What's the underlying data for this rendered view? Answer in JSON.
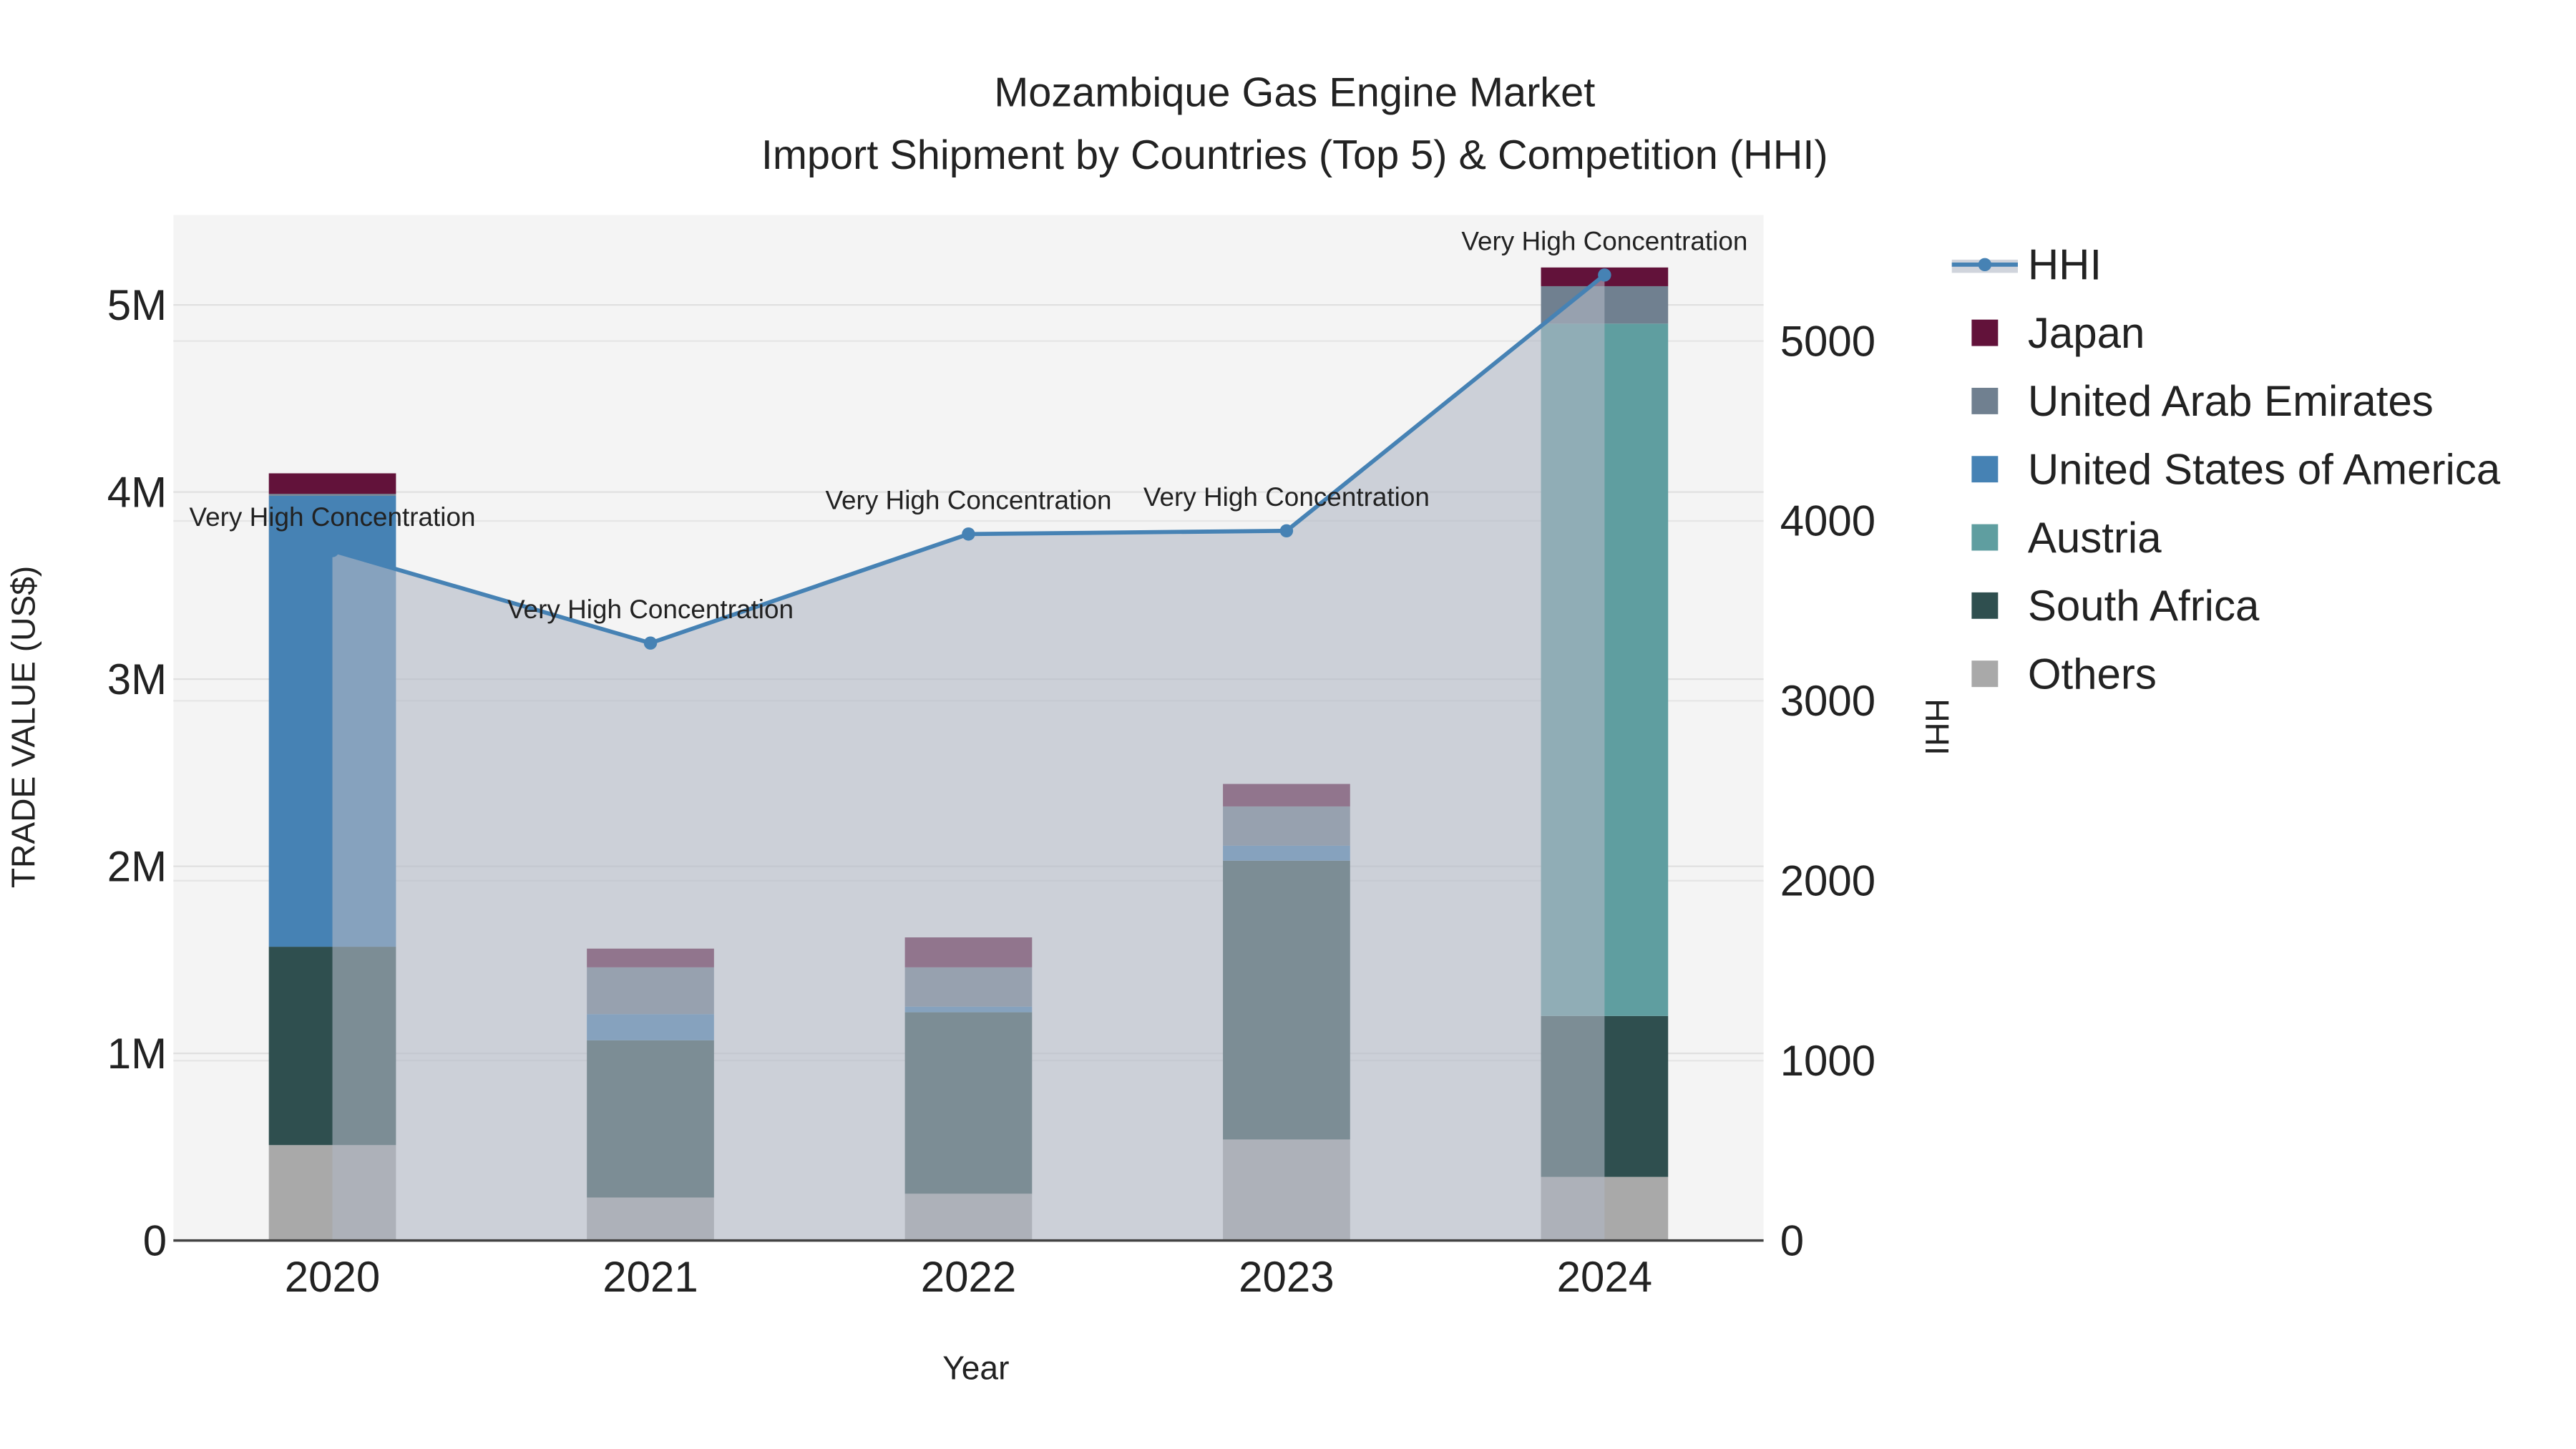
{
  "chart_data": {
    "type": "bar",
    "title": "Mozambique Gas Engine Market",
    "subtitle": "Import Shipment by Countries (Top 5) & Competition (HHI)",
    "xlabel": "Year",
    "ylabel": "TRADE VALUE (US$)",
    "y2label": "HHI",
    "categories": [
      "2020",
      "2021",
      "2022",
      "2023",
      "2024"
    ],
    "ylim": [
      0,
      5480000
    ],
    "y2lim": [
      0,
      5700
    ],
    "yticks": [
      {
        "v": 0,
        "label": "0"
      },
      {
        "v": 1000000,
        "label": "1M"
      },
      {
        "v": 2000000,
        "label": "2M"
      },
      {
        "v": 3000000,
        "label": "3M"
      },
      {
        "v": 4000000,
        "label": "4M"
      },
      {
        "v": 5000000,
        "label": "5M"
      }
    ],
    "y2ticks": [
      {
        "v": 0,
        "label": "0"
      },
      {
        "v": 1000,
        "label": "1000"
      },
      {
        "v": 2000,
        "label": "2000"
      },
      {
        "v": 3000,
        "label": "3000"
      },
      {
        "v": 4000,
        "label": "4000"
      },
      {
        "v": 5000,
        "label": "5000"
      }
    ],
    "series": [
      {
        "name": "Others",
        "color": "#a9a9a9",
        "values": [
          510000,
          230000,
          250000,
          540000,
          340000
        ]
      },
      {
        "name": "South Africa",
        "color": "#2f4f4f",
        "values": [
          1060000,
          840000,
          970000,
          1490000,
          860000
        ]
      },
      {
        "name": "Austria",
        "color": "#5f9ea0",
        "values": [
          0,
          0,
          0,
          0,
          3700000
        ]
      },
      {
        "name": "United States of America",
        "color": "#4682b4",
        "values": [
          2410000,
          140000,
          30000,
          80000,
          0
        ]
      },
      {
        "name": "United Arab Emirates",
        "color": "#708090",
        "values": [
          10000,
          250000,
          210000,
          210000,
          200000
        ]
      },
      {
        "name": "Japan",
        "color": "#62123a",
        "values": [
          110000,
          100000,
          160000,
          120000,
          100000
        ]
      }
    ],
    "hhi": {
      "name": "HHI",
      "color": "#4682b4",
      "values": [
        3835,
        3321,
        3927,
        3945,
        5367
      ],
      "annotations": [
        "Very High Concentration",
        "Very High Concentration",
        "Very High Concentration",
        "Very High Concentration",
        "Very High Concentration"
      ]
    },
    "legend_order": [
      "HHI",
      "Japan",
      "United Arab Emirates",
      "United States of America",
      "Austria",
      "South Africa",
      "Others"
    ],
    "legend_placement": "top-right",
    "grid": true
  }
}
